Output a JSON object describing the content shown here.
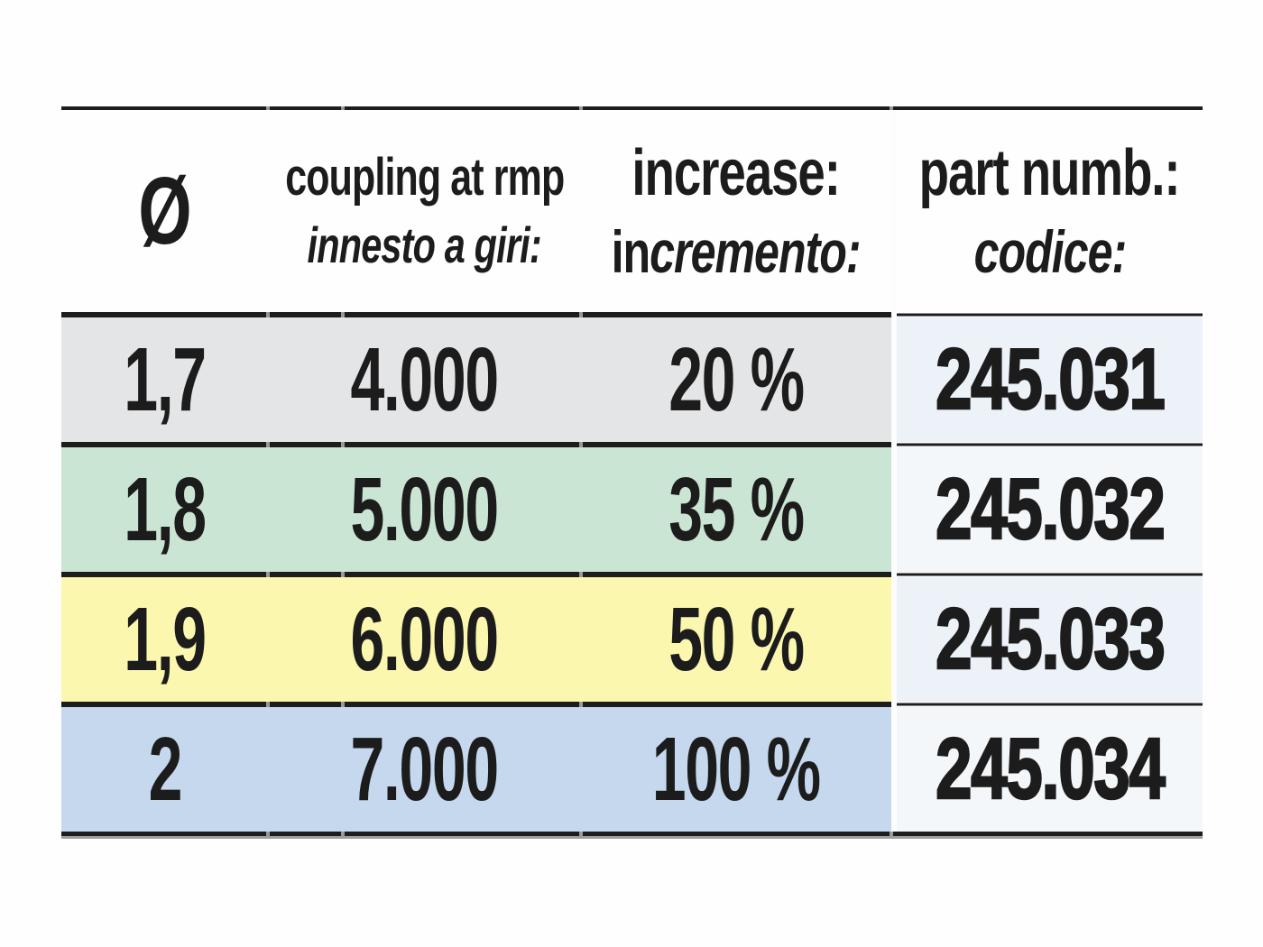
{
  "table": {
    "header": {
      "diameter_symbol": "Ø",
      "col2_line1": "coupling at rmp",
      "col2_line2": "innesto a giri:",
      "col3_line1": "increase:",
      "col3_line2_upright": "in",
      "col3_line2_italic": "cremento:",
      "col4_line1": "part numb.:",
      "col4_line2": "codice:"
    },
    "rows": [
      {
        "diameter": "1,7",
        "coupling_rpm": "4.000",
        "increase": "20 %",
        "part_number": "245.031",
        "row_color": "#e4e5e7",
        "part_cell_color": "#ecf2f8"
      },
      {
        "diameter": "1,8",
        "coupling_rpm": "5.000",
        "increase": "35 %",
        "part_number": "245.032",
        "row_color": "#cbe5d4",
        "part_cell_color": "#f4f7fa"
      },
      {
        "diameter": "1,9",
        "coupling_rpm": "6.000",
        "increase": "50 %",
        "part_number": "245.033",
        "row_color": "#fcf7ae",
        "part_cell_color": "#ecf2f8"
      },
      {
        "diameter": "2",
        "coupling_rpm": "7.000",
        "increase": "100 %",
        "part_number": "245.034",
        "row_color": "#c6d8ee",
        "part_cell_color": "#f4f7fa"
      }
    ],
    "colors": {
      "line": "#1d1d1d",
      "bottom_shadow": "#9e9e9e",
      "row_gray": "#e4e5e7",
      "row_green": "#cbe5d4",
      "row_yellow": "#fcf7ae",
      "row_blue": "#c6d8ee",
      "part_column_light": "#ecf2f8",
      "background": "#fefefe"
    }
  }
}
